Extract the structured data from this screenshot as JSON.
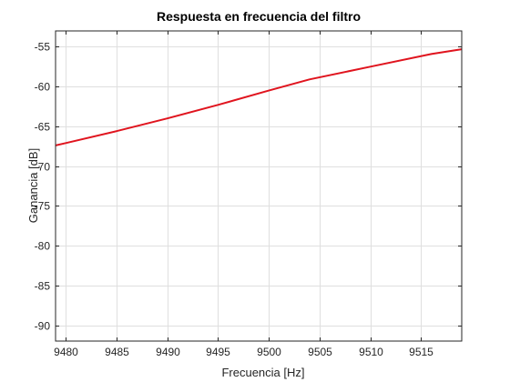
{
  "chart_data": {
    "type": "line",
    "title": "Respuesta en frecuencia del filtro",
    "xlabel": "Frecuencia [Hz]",
    "ylabel": "Ganancia [dB]",
    "xlim": [
      9479,
      9519
    ],
    "ylim": [
      -92,
      -53
    ],
    "xticks": [
      9480,
      9485,
      9490,
      9495,
      9500,
      9505,
      9510,
      9515
    ],
    "yticks": [
      -90,
      -85,
      -80,
      -75,
      -70,
      -65,
      -60,
      -55
    ],
    "grid": true,
    "series": [
      {
        "color": "#e0141e",
        "x": [
          9479,
          9480,
          9485,
          9490,
          9495,
          9500,
          9504,
          9510,
          9516,
          9519
        ],
        "values": [
          -67.4,
          -67.1,
          -65.6,
          -64.0,
          -62.3,
          -60.5,
          -59.1,
          -57.5,
          -55.9,
          -55.3
        ]
      }
    ]
  }
}
